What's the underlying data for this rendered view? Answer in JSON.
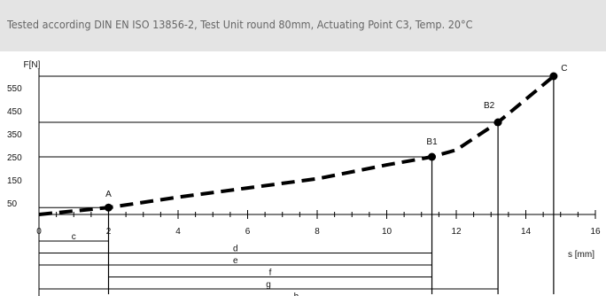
{
  "header": {
    "caption": "Tested according DIN EN ISO 13856-2, Test Unit round 80mm, Actuating Point C3, Temp. 20°C"
  },
  "chart_data": {
    "type": "line",
    "ylabel": "F[N]",
    "xlabel": "s [mm]",
    "xlim": [
      0,
      16
    ],
    "ylim": [
      0,
      600
    ],
    "x_ticks": [
      0,
      2,
      4,
      6,
      8,
      10,
      12,
      14,
      16
    ],
    "y_ticks": [
      50,
      150,
      250,
      350,
      450,
      550
    ],
    "series": [
      {
        "style": "dashed",
        "x": [
          0,
          2,
          4,
          6,
          8,
          10,
          11.3,
          12,
          13.2,
          14.8
        ],
        "y": [
          0,
          30,
          75,
          115,
          155,
          215,
          250,
          280,
          400,
          600
        ]
      }
    ],
    "points": [
      {
        "label": "A",
        "x": 2,
        "y": 30
      },
      {
        "label": "B1",
        "x": 11.3,
        "y": 250
      },
      {
        "label": "B2",
        "x": 13.2,
        "y": 400
      },
      {
        "label": "C",
        "x": 14.8,
        "y": 600
      }
    ],
    "dimension_lines": [
      {
        "label": "c",
        "from": 0,
        "to": 2
      },
      {
        "label": "d",
        "from": 0,
        "to": 11.3
      },
      {
        "label": "e",
        "from": 0,
        "to": 11.3
      },
      {
        "label": "f",
        "from": 2,
        "to": 11.3
      },
      {
        "label": "g",
        "from": 0,
        "to": 13.2
      },
      {
        "label": "h",
        "from": 0,
        "to": 14.8
      }
    ]
  }
}
